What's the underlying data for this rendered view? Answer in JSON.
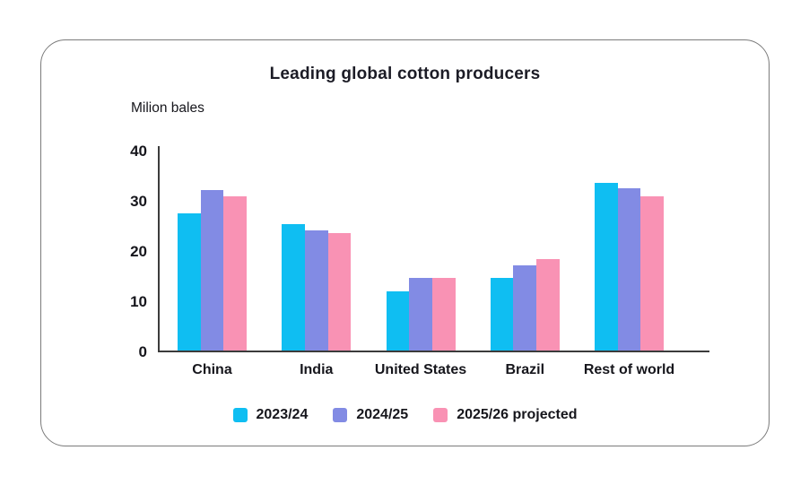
{
  "chart_data": {
    "type": "bar",
    "title": "Leading global cotton producers",
    "ylabel": "Milion bales",
    "xlabel": "",
    "categories": [
      "China",
      "India",
      "United States",
      "Brazil",
      "Rest of world"
    ],
    "series": [
      {
        "name": "2023/24",
        "color": "#0fbef2",
        "values": [
          27.3,
          25.2,
          11.8,
          14.5,
          33.4
        ]
      },
      {
        "name": "2024/25",
        "color": "#828be4",
        "values": [
          31.9,
          24.0,
          14.4,
          17.0,
          32.3
        ]
      },
      {
        "name": "2025/26 projected",
        "color": "#f992b4",
        "values": [
          30.8,
          23.4,
          14.5,
          18.2,
          30.8
        ]
      }
    ],
    "ylim": [
      0,
      40
    ],
    "yticks": [
      0,
      10,
      20,
      30,
      40
    ],
    "grid": false,
    "legend_position": "bottom",
    "axis_color": "#3b3b3b"
  }
}
